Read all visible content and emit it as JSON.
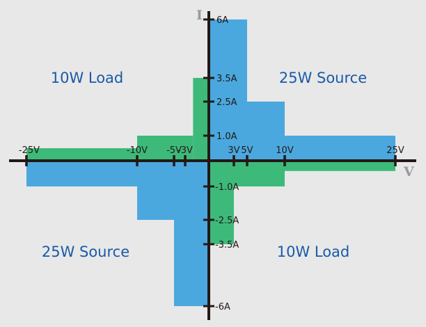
{
  "colors": {
    "background": "#e8e8e8",
    "source": "#4aa8de",
    "load": "#3dba7a",
    "axis": "#231815",
    "label": "#1a5aa8",
    "axis_name": "#9a9a9a"
  },
  "axes": {
    "x_name": "V",
    "y_name": "I"
  },
  "v_ticks": [
    {
      "value": -25,
      "label": "-25V"
    },
    {
      "value": -10,
      "label": "-10V"
    },
    {
      "value": -5,
      "label": "-5V"
    },
    {
      "value": -3,
      "label": "-3V"
    },
    {
      "value": 3,
      "label": "3V"
    },
    {
      "value": 5,
      "label": "5V"
    },
    {
      "value": 10,
      "label": "10V"
    },
    {
      "value": 25,
      "label": "25V"
    }
  ],
  "i_ticks": [
    {
      "value": 6,
      "label": "6A"
    },
    {
      "value": 3.5,
      "label": "3.5A"
    },
    {
      "value": 2.5,
      "label": "2.5A"
    },
    {
      "value": 1,
      "label": "1.0A"
    },
    {
      "value": -1,
      "label": "-1.0A"
    },
    {
      "value": -2.5,
      "label": "-2.5A"
    },
    {
      "value": -3.5,
      "label": "-3.5A"
    },
    {
      "value": -6,
      "label": "-6A"
    }
  ],
  "regions": [
    {
      "kind": "source",
      "v": [
        0,
        5
      ],
      "i": [
        0,
        6
      ]
    },
    {
      "kind": "source",
      "v": [
        5,
        10
      ],
      "i": [
        0,
        2.5
      ]
    },
    {
      "kind": "source",
      "v": [
        10,
        25
      ],
      "i": [
        0,
        1
      ]
    },
    {
      "kind": "source",
      "v": [
        -25,
        -10
      ],
      "i": [
        -1,
        0
      ]
    },
    {
      "kind": "source",
      "v": [
        -10,
        -5
      ],
      "i": [
        -2.5,
        0
      ]
    },
    {
      "kind": "source",
      "v": [
        -5,
        0
      ],
      "i": [
        -6,
        0
      ]
    },
    {
      "kind": "load",
      "v": [
        -25,
        -10
      ],
      "i": [
        0,
        0.5
      ]
    },
    {
      "kind": "load",
      "v": [
        -10,
        -2
      ],
      "i": [
        0,
        1
      ]
    },
    {
      "kind": "load",
      "v": [
        -2,
        0
      ],
      "i": [
        0,
        3.5
      ]
    },
    {
      "kind": "load",
      "v": [
        0,
        3
      ],
      "i": [
        -3.5,
        0
      ]
    },
    {
      "kind": "load",
      "v": [
        0,
        10
      ],
      "i": [
        -1,
        0
      ]
    },
    {
      "kind": "load",
      "v": [
        10,
        25
      ],
      "i": [
        -0.4,
        0
      ]
    }
  ],
  "quadrant_labels": {
    "top_left": "10W Load",
    "top_right": "25W Source",
    "bottom_left": "25W Source",
    "bottom_right": "10W Load"
  }
}
